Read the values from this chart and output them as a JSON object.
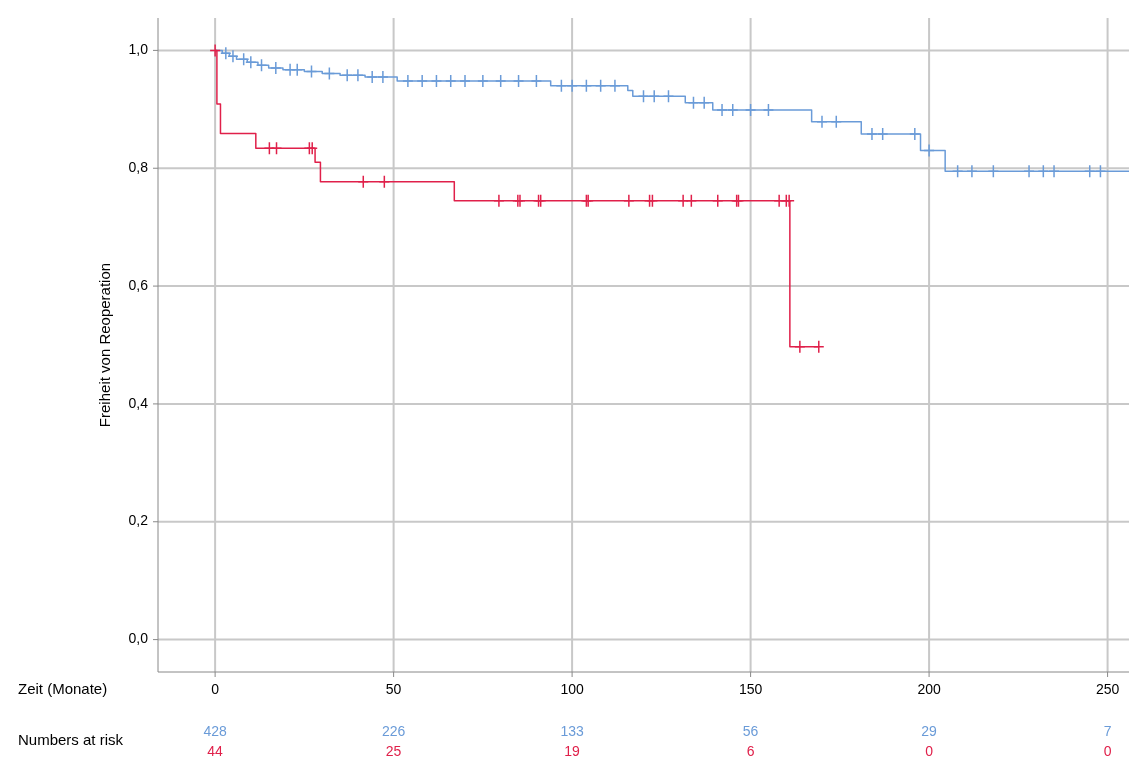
{
  "chart_data": {
    "type": "step",
    "xlabel": "Zeit (Monate)",
    "ylabel": "Freiheit von Reoperation",
    "xlim": [
      -16,
      256
    ],
    "ylim": [
      -0.055,
      1.055
    ],
    "xticks": [
      0,
      50,
      100,
      150,
      200,
      250
    ],
    "yticks": [
      {
        "value": 0,
        "label": "0,0"
      },
      {
        "value": 0.2,
        "label": "0,2"
      },
      {
        "value": 0.4,
        "label": "0,4"
      },
      {
        "value": 0.6,
        "label": "0,6"
      },
      {
        "value": 0.8,
        "label": "0,8"
      },
      {
        "value": 1,
        "label": "1,0"
      }
    ],
    "grid": true,
    "series": [
      {
        "marker": "none",
        "color": "#6a9bd8",
        "x": [
          0,
          2,
          4,
          6,
          9,
          12,
          15,
          19,
          25,
          30,
          35,
          42,
          51,
          94,
          115.6,
          117,
          131.7,
          139.4,
          167.1,
          181,
          197.6,
          204.5,
          256
        ],
        "values": [
          1,
          0.995,
          0.99,
          0.985,
          0.98,
          0.975,
          0.97,
          0.967,
          0.964,
          0.961,
          0.958,
          0.955,
          0.948,
          0.94,
          0.932,
          0.922,
          0.911,
          0.899,
          0.879,
          0.858,
          0.83,
          0.795,
          0.795
        ]
      },
      {
        "marker": "none",
        "color": "#e0204a",
        "x": [
          0,
          0.5,
          1.5,
          11.4,
          28,
          29.5,
          67,
          161,
          169
        ],
        "values": [
          1,
          0.909,
          0.859,
          0.834,
          0.81,
          0.777,
          0.745,
          0.497,
          0.497
        ]
      },
      {
        "type": "scatter",
        "marker": "cross",
        "color": "#6a9bd8",
        "x": [
          3,
          5,
          8,
          10,
          13,
          17,
          21,
          23,
          27,
          32,
          37,
          40,
          44,
          47,
          54,
          58,
          62,
          66,
          70,
          75,
          80,
          85,
          90,
          97,
          100,
          104,
          108,
          112,
          120,
          123,
          127,
          134,
          137,
          142,
          145,
          150,
          155,
          170,
          174,
          184,
          187,
          196,
          200,
          208,
          212,
          218,
          228,
          232,
          235,
          245,
          248
        ],
        "values": [
          0.995,
          0.99,
          0.985,
          0.98,
          0.975,
          0.97,
          0.967,
          0.967,
          0.964,
          0.961,
          0.958,
          0.958,
          0.955,
          0.955,
          0.948,
          0.948,
          0.948,
          0.948,
          0.948,
          0.948,
          0.948,
          0.948,
          0.948,
          0.94,
          0.94,
          0.94,
          0.94,
          0.94,
          0.922,
          0.922,
          0.922,
          0.911,
          0.911,
          0.899,
          0.899,
          0.899,
          0.899,
          0.879,
          0.879,
          0.858,
          0.858,
          0.858,
          0.83,
          0.795,
          0.795,
          0.795,
          0.795,
          0.795,
          0.795,
          0.795,
          0.795
        ]
      },
      {
        "type": "scatter",
        "marker": "cross",
        "color": "#e0204a",
        "x": [
          0,
          15.2,
          17.2,
          26.4,
          27.2,
          41.5,
          47.4,
          79.5,
          84.8,
          85.4,
          90.6,
          91.2,
          104,
          104.5,
          115.9,
          121.7,
          122.5,
          131.1,
          133.4,
          140.8,
          146.1,
          146.6,
          158,
          160,
          160.8,
          163.8,
          169.1
        ],
        "values": [
          1,
          0.834,
          0.834,
          0.834,
          0.834,
          0.777,
          0.777,
          0.745,
          0.745,
          0.745,
          0.745,
          0.745,
          0.745,
          0.745,
          0.745,
          0.745,
          0.745,
          0.745,
          0.745,
          0.745,
          0.745,
          0.745,
          0.745,
          0.745,
          0.745,
          0.497,
          0.497
        ]
      }
    ],
    "annotations": [
      "Numbers  at risk",
      "428",
      "226",
      "133",
      "56",
      "29",
      "7",
      "44",
      "25",
      "19",
      "6",
      "0",
      "0"
    ]
  }
}
